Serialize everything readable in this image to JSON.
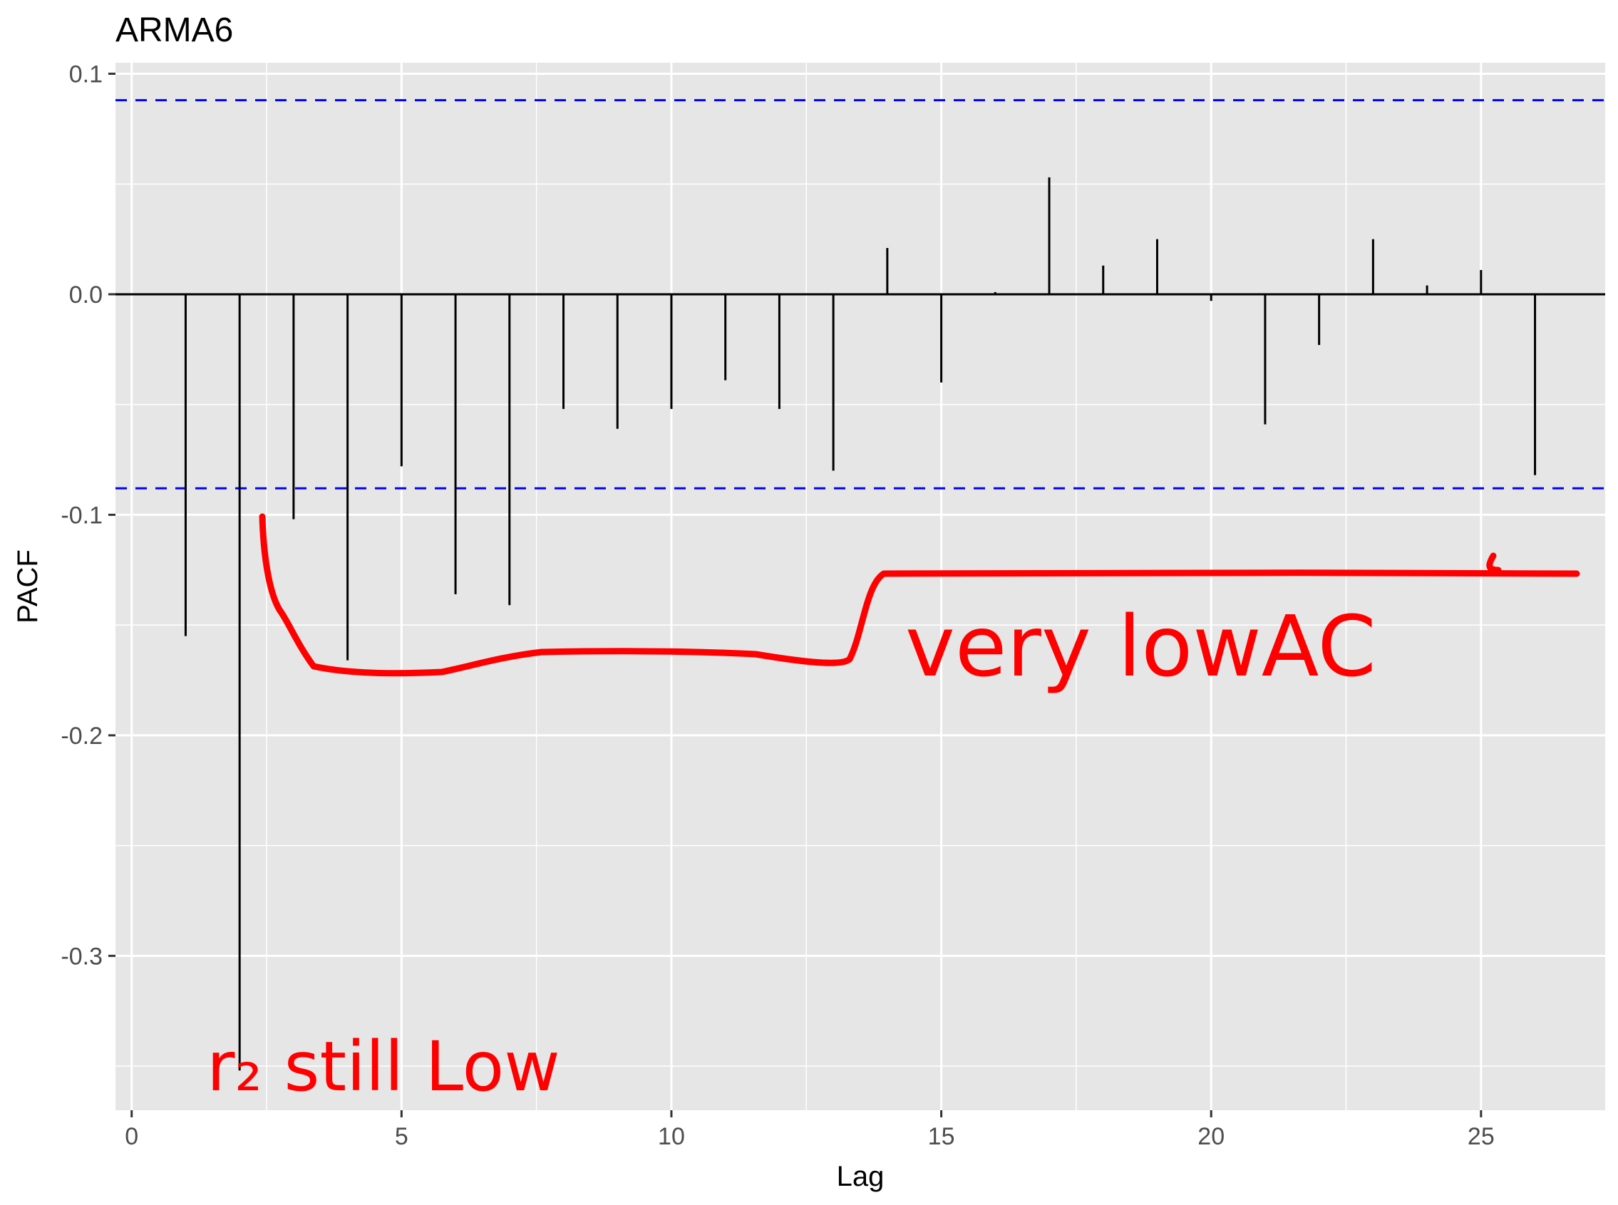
{
  "chart_data": {
    "type": "bar",
    "title": "ARMA6",
    "xlabel": "Lag",
    "ylabel": "PACF",
    "x": [
      1,
      2,
      3,
      4,
      5,
      6,
      7,
      8,
      9,
      10,
      11,
      12,
      13,
      14,
      15,
      16,
      17,
      18,
      19,
      20,
      21,
      22,
      23,
      24,
      25,
      26
    ],
    "values": [
      -0.155,
      -0.352,
      -0.102,
      -0.166,
      -0.078,
      -0.136,
      -0.141,
      -0.052,
      -0.061,
      -0.052,
      -0.039,
      -0.052,
      -0.08,
      0.021,
      -0.04,
      0.001,
      0.053,
      0.013,
      0.025,
      -0.003,
      -0.059,
      -0.023,
      0.025,
      0.004,
      0.011,
      -0.082
    ],
    "confidence_bounds": [
      0.088,
      -0.088
    ],
    "xlim": [
      -0.3,
      27.3
    ],
    "ylim": [
      -0.37,
      0.105
    ],
    "x_ticks": [
      0,
      5,
      10,
      15,
      20,
      25
    ],
    "x_tick_labels": [
      "0",
      "5",
      "10",
      "15",
      "20",
      "25"
    ],
    "y_ticks": [
      0.1,
      0.0,
      -0.1,
      -0.2,
      -0.3
    ],
    "y_tick_labels": [
      "0.1",
      "0.0",
      "-0.1",
      "-0.2",
      "-0.3"
    ],
    "grid": true,
    "colors": {
      "panel": "#e6e6e6",
      "grid": "#ffffff",
      "spike": "#000000",
      "bounds": "#0000ff",
      "annotation": "#ff0000"
    },
    "annotations": [
      {
        "text": "very lowAC",
        "style": "handwritten"
      },
      {
        "text": "r₂ still Low",
        "style": "handwritten"
      }
    ]
  }
}
